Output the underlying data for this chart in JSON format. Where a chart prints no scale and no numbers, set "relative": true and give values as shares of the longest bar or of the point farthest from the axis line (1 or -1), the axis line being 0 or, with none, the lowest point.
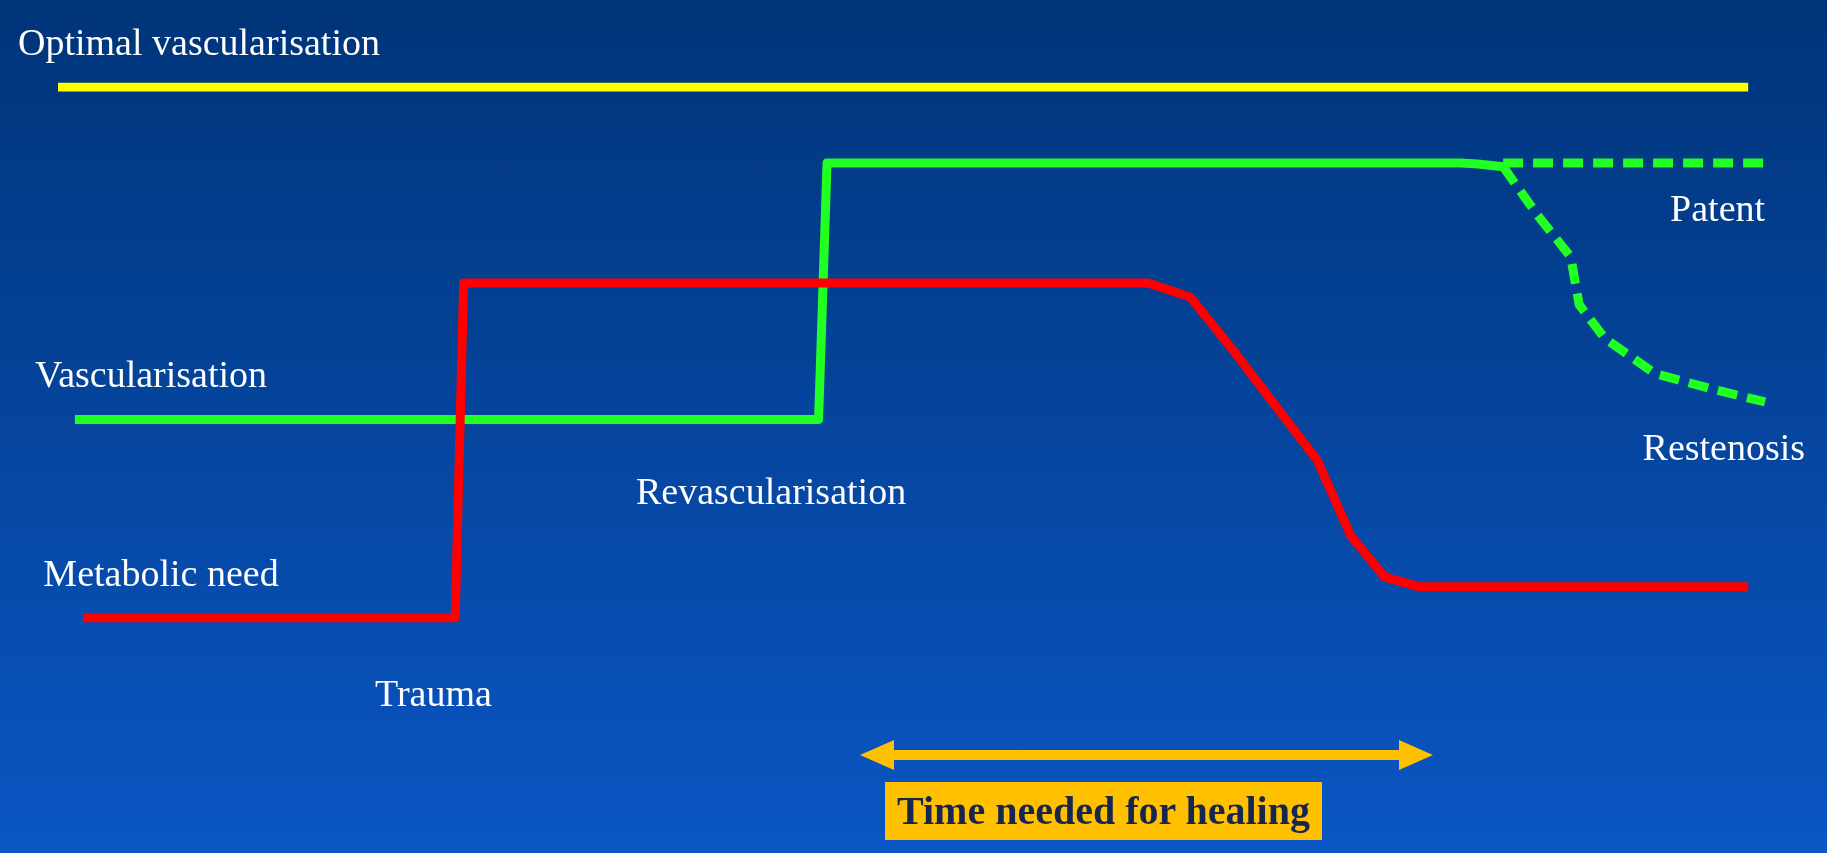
{
  "chart_data": {
    "type": "line",
    "relative": true,
    "legend": false,
    "grid": false,
    "marker": "none",
    "categories": [
      null,
      null,
      null,
      null,
      null,
      null,
      null,
      null,
      null,
      null,
      null,
      null,
      null,
      null,
      null,
      null,
      null,
      null,
      null,
      null,
      null,
      null,
      null,
      null,
      null,
      null,
      null,
      null,
      null,
      null,
      null,
      null,
      null,
      null,
      null,
      null,
      null,
      null,
      null,
      null,
      null,
      null,
      null,
      null,
      null,
      null,
      null,
      null,
      null,
      null,
      null,
      null,
      null,
      null,
      null,
      null,
      null,
      null,
      null,
      null,
      null,
      null,
      null,
      null,
      null,
      null,
      null,
      null,
      null,
      null,
      null,
      null,
      null,
      null,
      null,
      null,
      null,
      null,
      null,
      null,
      null,
      null,
      null,
      null,
      null,
      null,
      null,
      null,
      null,
      null,
      null,
      null,
      null,
      null,
      null,
      null,
      null,
      null,
      null,
      null,
      null,
      null,
      null,
      null,
      null,
      null,
      null,
      null,
      null,
      null,
      null,
      null,
      null,
      null,
      null,
      null,
      null,
      null,
      null,
      null,
      null,
      null,
      null,
      null,
      null,
      null,
      null,
      null,
      null,
      null,
      null,
      null,
      null,
      null,
      null,
      null,
      null,
      null,
      null,
      null,
      null,
      null,
      null,
      null,
      null,
      null,
      null,
      null,
      null,
      null,
      null,
      null,
      null,
      null,
      null,
      null,
      null,
      null,
      null,
      null,
      null,
      null,
      null,
      null,
      null,
      null,
      null,
      null,
      null,
      null,
      null,
      null,
      null,
      null,
      null,
      null,
      null,
      null,
      null,
      null,
      null,
      null,
      null,
      null,
      null,
      null,
      null,
      null,
      null,
      null,
      null,
      null,
      null,
      null,
      null,
      null,
      null,
      null,
      null,
      null,
      null,
      null,
      null,
      null,
      null
    ],
    "series": [
      {
        "name": "Optimal vascularisation",
        "color": "#ffff00",
        "line_style": "solid",
        "values": [
          1,
          null,
          null,
          null,
          null,
          null,
          null,
          null,
          null,
          null,
          null,
          null,
          null,
          null,
          null,
          null,
          null,
          null,
          null,
          null,
          null,
          null,
          null,
          null,
          null,
          null,
          null,
          null,
          null,
          null,
          null,
          null,
          null,
          null,
          null,
          null,
          null,
          null,
          null,
          null,
          null,
          null,
          null,
          null,
          null,
          null,
          null,
          null,
          null,
          null,
          null,
          null,
          null,
          null,
          null,
          null,
          null,
          null,
          null,
          null,
          null,
          null,
          null,
          null,
          null,
          null,
          null,
          null,
          null,
          null,
          null,
          null,
          null,
          null,
          null,
          null,
          null,
          null,
          null,
          null,
          null,
          null,
          null,
          null,
          null,
          null,
          null,
          null,
          null,
          null,
          null,
          null,
          null,
          null,
          null,
          null,
          null,
          null,
          null,
          null,
          null,
          null,
          null,
          null,
          null,
          null,
          null,
          null,
          null,
          null,
          null,
          null,
          null,
          null,
          null,
          null,
          null,
          null,
          null,
          null,
          null,
          null,
          null,
          null,
          null,
          null,
          null,
          null,
          null,
          null,
          null,
          null,
          null,
          null,
          null,
          null,
          null,
          null,
          null,
          null,
          null,
          null,
          null,
          null,
          null,
          null,
          null,
          null,
          null,
          null,
          null,
          null,
          null,
          null,
          null,
          null,
          null,
          null,
          null,
          null,
          null,
          null,
          null,
          null,
          null,
          null,
          null,
          null,
          null,
          null,
          null,
          null,
          null,
          null,
          null,
          null,
          null,
          null,
          null,
          null,
          null,
          null,
          null,
          null,
          null,
          null,
          null,
          null,
          null,
          null,
          null,
          null,
          null,
          null,
          null,
          null,
          null,
          null,
          null,
          null,
          1,
          null,
          null,
          null,
          null
        ]
      },
      {
        "name": "Vascularisation",
        "color": "#22ff22",
        "line_style": "solid",
        "values": [
          null,
          null,
          0.374,
          null,
          null,
          null,
          null,
          null,
          null,
          null,
          null,
          null,
          null,
          null,
          null,
          null,
          null,
          null,
          null,
          null,
          null,
          null,
          null,
          null,
          null,
          null,
          null,
          null,
          null,
          null,
          null,
          null,
          null,
          null,
          null,
          null,
          null,
          null,
          null,
          null,
          null,
          null,
          null,
          null,
          null,
          null,
          null,
          null,
          null,
          null,
          null,
          null,
          null,
          null,
          null,
          null,
          null,
          null,
          null,
          null,
          null,
          null,
          null,
          null,
          null,
          null,
          null,
          null,
          null,
          null,
          null,
          null,
          null,
          null,
          null,
          null,
          null,
          null,
          null,
          null,
          null,
          null,
          null,
          null,
          null,
          null,
          null,
          null,
          null,
          null,
          0.374,
          0.857,
          null,
          null,
          null,
          null,
          null,
          null,
          null,
          null,
          null,
          null,
          null,
          null,
          null,
          null,
          null,
          null,
          null,
          null,
          null,
          null,
          null,
          null,
          null,
          null,
          null,
          null,
          null,
          null,
          null,
          null,
          null,
          null,
          null,
          null,
          null,
          null,
          null,
          null,
          null,
          null,
          null,
          null,
          null,
          null,
          null,
          null,
          null,
          null,
          null,
          null,
          null,
          null,
          null,
          null,
          null,
          null,
          null,
          null,
          null,
          null,
          null,
          null,
          null,
          null,
          null,
          null,
          null,
          null,
          null,
          null,
          null,
          null,
          null,
          null,
          0.857,
          null,
          0.855,
          null,
          null,
          0.85,
          null,
          null,
          null,
          null,
          null,
          null,
          null,
          null,
          null,
          null,
          null,
          null,
          null,
          null,
          null,
          null,
          null,
          null,
          null,
          null,
          null,
          null,
          null,
          null,
          null,
          null,
          null,
          null,
          null,
          null,
          null,
          null,
          null
        ]
      },
      {
        "name": "Patent",
        "color": "#22ff22",
        "line_style": "dashed",
        "values": [
          null,
          null,
          null,
          null,
          null,
          null,
          null,
          null,
          null,
          null,
          null,
          null,
          null,
          null,
          null,
          null,
          null,
          null,
          null,
          null,
          null,
          null,
          null,
          null,
          null,
          null,
          null,
          null,
          null,
          null,
          null,
          null,
          null,
          null,
          null,
          null,
          null,
          null,
          null,
          null,
          null,
          null,
          null,
          null,
          null,
          null,
          null,
          null,
          null,
          null,
          null,
          null,
          null,
          null,
          null,
          null,
          null,
          null,
          null,
          null,
          null,
          null,
          null,
          null,
          null,
          null,
          null,
          null,
          null,
          null,
          null,
          null,
          null,
          null,
          null,
          null,
          null,
          null,
          null,
          null,
          null,
          null,
          null,
          null,
          null,
          null,
          null,
          null,
          null,
          null,
          null,
          null,
          null,
          null,
          null,
          null,
          null,
          null,
          null,
          null,
          null,
          null,
          null,
          null,
          null,
          null,
          null,
          null,
          null,
          null,
          null,
          null,
          null,
          null,
          null,
          null,
          null,
          null,
          null,
          null,
          null,
          null,
          null,
          null,
          null,
          null,
          null,
          null,
          null,
          null,
          null,
          null,
          null,
          null,
          null,
          null,
          null,
          null,
          null,
          null,
          null,
          null,
          null,
          null,
          null,
          null,
          null,
          null,
          null,
          null,
          null,
          null,
          null,
          null,
          null,
          null,
          null,
          null,
          null,
          null,
          null,
          null,
          null,
          null,
          null,
          null,
          null,
          null,
          null,
          null,
          null,
          0.857,
          null,
          null,
          null,
          null,
          null,
          null,
          null,
          null,
          null,
          null,
          null,
          null,
          null,
          null,
          null,
          null,
          null,
          null,
          null,
          null,
          null,
          null,
          null,
          null,
          null,
          null,
          null,
          null,
          null,
          null,
          0.857,
          null,
          null
        ]
      },
      {
        "name": "Restenosis",
        "color": "#22ff22",
        "line_style": "dashed",
        "values": [
          null,
          null,
          null,
          null,
          null,
          null,
          null,
          null,
          null,
          null,
          null,
          null,
          null,
          null,
          null,
          null,
          null,
          null,
          null,
          null,
          null,
          null,
          null,
          null,
          null,
          null,
          null,
          null,
          null,
          null,
          null,
          null,
          null,
          null,
          null,
          null,
          null,
          null,
          null,
          null,
          null,
          null,
          null,
          null,
          null,
          null,
          null,
          null,
          null,
          null,
          null,
          null,
          null,
          null,
          null,
          null,
          null,
          null,
          null,
          null,
          null,
          null,
          null,
          null,
          null,
          null,
          null,
          null,
          null,
          null,
          null,
          null,
          null,
          null,
          null,
          null,
          null,
          null,
          null,
          null,
          null,
          null,
          null,
          null,
          null,
          null,
          null,
          null,
          null,
          null,
          null,
          null,
          null,
          null,
          null,
          null,
          null,
          null,
          null,
          null,
          null,
          null,
          null,
          null,
          null,
          null,
          null,
          null,
          null,
          null,
          null,
          null,
          null,
          null,
          null,
          null,
          null,
          null,
          null,
          null,
          null,
          null,
          null,
          null,
          null,
          null,
          null,
          null,
          null,
          null,
          null,
          null,
          null,
          null,
          null,
          null,
          null,
          null,
          null,
          null,
          null,
          null,
          null,
          null,
          null,
          null,
          null,
          null,
          null,
          null,
          null,
          null,
          null,
          null,
          null,
          null,
          null,
          null,
          null,
          null,
          null,
          null,
          null,
          null,
          null,
          null,
          null,
          null,
          null,
          null,
          null,
          0.85,
          null,
          null,
          null,
          0.76,
          null,
          null,
          null,
          0.68,
          0.59,
          null,
          null,
          0.527,
          null,
          null,
          null,
          null,
          null,
          0.46,
          null,
          null,
          null,
          null,
          null,
          null,
          0.43,
          null,
          null,
          null,
          null,
          null,
          0.407,
          null,
          null
        ]
      },
      {
        "name": "Metabolic need",
        "color": "#ff0000",
        "line_style": "solid",
        "values": [
          null,
          null,
          null,
          0,
          null,
          null,
          null,
          null,
          null,
          null,
          null,
          null,
          null,
          null,
          null,
          null,
          null,
          null,
          null,
          null,
          null,
          null,
          null,
          null,
          null,
          null,
          null,
          null,
          null,
          null,
          null,
          null,
          null,
          null,
          null,
          null,
          null,
          null,
          null,
          null,
          null,
          null,
          null,
          null,
          null,
          null,
          null,
          0,
          0.631,
          null,
          null,
          null,
          null,
          null,
          null,
          null,
          null,
          null,
          null,
          null,
          null,
          null,
          null,
          null,
          null,
          null,
          null,
          null,
          null,
          null,
          null,
          null,
          null,
          null,
          null,
          null,
          null,
          null,
          null,
          null,
          null,
          null,
          null,
          null,
          null,
          null,
          null,
          null,
          null,
          null,
          null,
          null,
          null,
          null,
          null,
          null,
          null,
          null,
          null,
          null,
          null,
          null,
          null,
          null,
          null,
          null,
          null,
          null,
          null,
          null,
          null,
          null,
          null,
          null,
          null,
          null,
          null,
          null,
          null,
          null,
          null,
          null,
          null,
          null,
          null,
          null,
          null,
          null,
          null,
          0.631,
          null,
          null,
          null,
          null,
          0.604,
          null,
          null,
          null,
          null,
          0.505,
          null,
          null,
          null,
          null,
          null,
          null,
          null,
          null,
          null,
          0.297,
          null,
          null,
          null,
          0.154,
          null,
          null,
          null,
          0.077,
          null,
          null,
          null,
          0.059,
          null,
          null,
          null,
          null,
          null,
          null,
          null,
          null,
          null,
          null,
          null,
          null,
          null,
          null,
          null,
          null,
          null,
          null,
          null,
          null,
          null,
          null,
          null,
          null,
          null,
          null,
          null,
          null,
          null,
          null,
          null,
          null,
          null,
          null,
          null,
          null,
          null,
          null,
          0.059,
          null,
          null,
          null,
          null
        ]
      }
    ],
    "annotations": [
      "Trauma",
      "Revascularisation",
      "Time needed for healing"
    ]
  }
}
